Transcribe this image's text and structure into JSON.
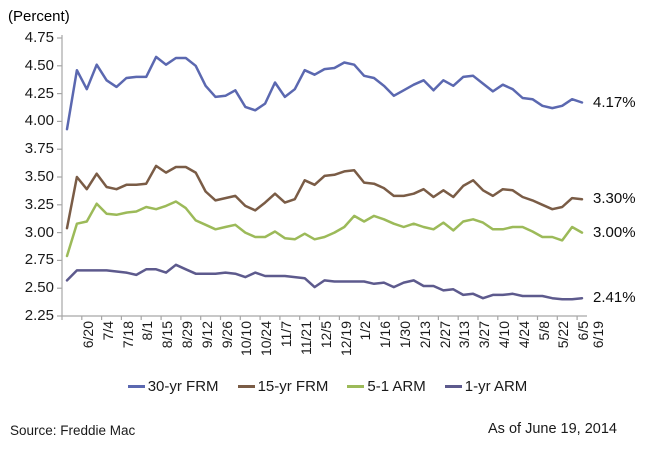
{
  "chart_data": {
    "type": "line",
    "y_axis_title": "(Percent)",
    "ylim": [
      2.25,
      4.75
    ],
    "y_tick_step": 0.25,
    "grid": false,
    "legend_position": "bottom",
    "axis_color": "#a6a6a6",
    "x_tick_labels": [
      "6/20",
      "7/4",
      "7/18",
      "8/1",
      "8/15",
      "8/29",
      "9/12",
      "9/26",
      "10/10",
      "10/24",
      "11/7",
      "11/21",
      "12/5",
      "12/19",
      "1/2",
      "1/16",
      "1/30",
      "2/13",
      "2/27",
      "3/13",
      "3/27",
      "4/10",
      "4/24",
      "5/8",
      "5/22",
      "6/5",
      "6/19"
    ],
    "series": [
      {
        "name": "30-yr FRM",
        "color": "#5b68b0",
        "end_label": "4.17%",
        "values": [
          3.93,
          4.46,
          4.29,
          4.51,
          4.37,
          4.31,
          4.39,
          4.4,
          4.4,
          4.58,
          4.51,
          4.57,
          4.57,
          4.5,
          4.32,
          4.22,
          4.23,
          4.28,
          4.13,
          4.1,
          4.16,
          4.35,
          4.22,
          4.29,
          4.46,
          4.42,
          4.47,
          4.48,
          4.53,
          4.51,
          4.41,
          4.39,
          4.32,
          4.23,
          4.28,
          4.33,
          4.37,
          4.28,
          4.37,
          4.32,
          4.4,
          4.41,
          4.34,
          4.27,
          4.33,
          4.29,
          4.21,
          4.2,
          4.14,
          4.12,
          4.14,
          4.2,
          4.17
        ]
      },
      {
        "name": "15-yr FRM",
        "color": "#7a5c46",
        "end_label": "3.30%",
        "values": [
          3.04,
          3.5,
          3.39,
          3.53,
          3.41,
          3.39,
          3.43,
          3.43,
          3.44,
          3.6,
          3.54,
          3.59,
          3.59,
          3.54,
          3.37,
          3.29,
          3.31,
          3.33,
          3.24,
          3.2,
          3.27,
          3.35,
          3.27,
          3.3,
          3.47,
          3.43,
          3.51,
          3.52,
          3.55,
          3.56,
          3.45,
          3.44,
          3.4,
          3.33,
          3.33,
          3.35,
          3.39,
          3.32,
          3.38,
          3.32,
          3.42,
          3.47,
          3.38,
          3.33,
          3.39,
          3.38,
          3.32,
          3.29,
          3.25,
          3.21,
          3.23,
          3.31,
          3.3
        ]
      },
      {
        "name": "5-1 ARM",
        "color": "#9cba59",
        "end_label": "3.00%",
        "values": [
          2.79,
          3.08,
          3.1,
          3.26,
          3.17,
          3.16,
          3.18,
          3.19,
          3.23,
          3.21,
          3.24,
          3.28,
          3.22,
          3.11,
          3.07,
          3.03,
          3.05,
          3.07,
          3.0,
          2.96,
          2.96,
          3.01,
          2.95,
          2.94,
          2.99,
          2.94,
          2.96,
          3.0,
          3.05,
          3.15,
          3.1,
          3.15,
          3.12,
          3.08,
          3.05,
          3.08,
          3.05,
          3.03,
          3.09,
          3.02,
          3.1,
          3.12,
          3.09,
          3.03,
          3.03,
          3.05,
          3.05,
          3.01,
          2.96,
          2.96,
          2.93,
          3.05,
          3.0
        ]
      },
      {
        "name": "1-yr ARM",
        "color": "#5d5a8d",
        "end_label": "2.41%",
        "values": [
          2.57,
          2.66,
          2.66,
          2.66,
          2.66,
          2.65,
          2.64,
          2.62,
          2.67,
          2.67,
          2.64,
          2.71,
          2.67,
          2.63,
          2.63,
          2.63,
          2.64,
          2.63,
          2.6,
          2.64,
          2.61,
          2.61,
          2.61,
          2.6,
          2.59,
          2.51,
          2.57,
          2.56,
          2.56,
          2.56,
          2.56,
          2.54,
          2.55,
          2.51,
          2.55,
          2.57,
          2.52,
          2.52,
          2.48,
          2.49,
          2.44,
          2.45,
          2.41,
          2.44,
          2.44,
          2.45,
          2.43,
          2.43,
          2.43,
          2.41,
          2.4,
          2.4,
          2.41
        ]
      }
    ]
  },
  "footer": {
    "source": "Source: Freddie Mac",
    "as_of": "As of June 19, 2014"
  }
}
